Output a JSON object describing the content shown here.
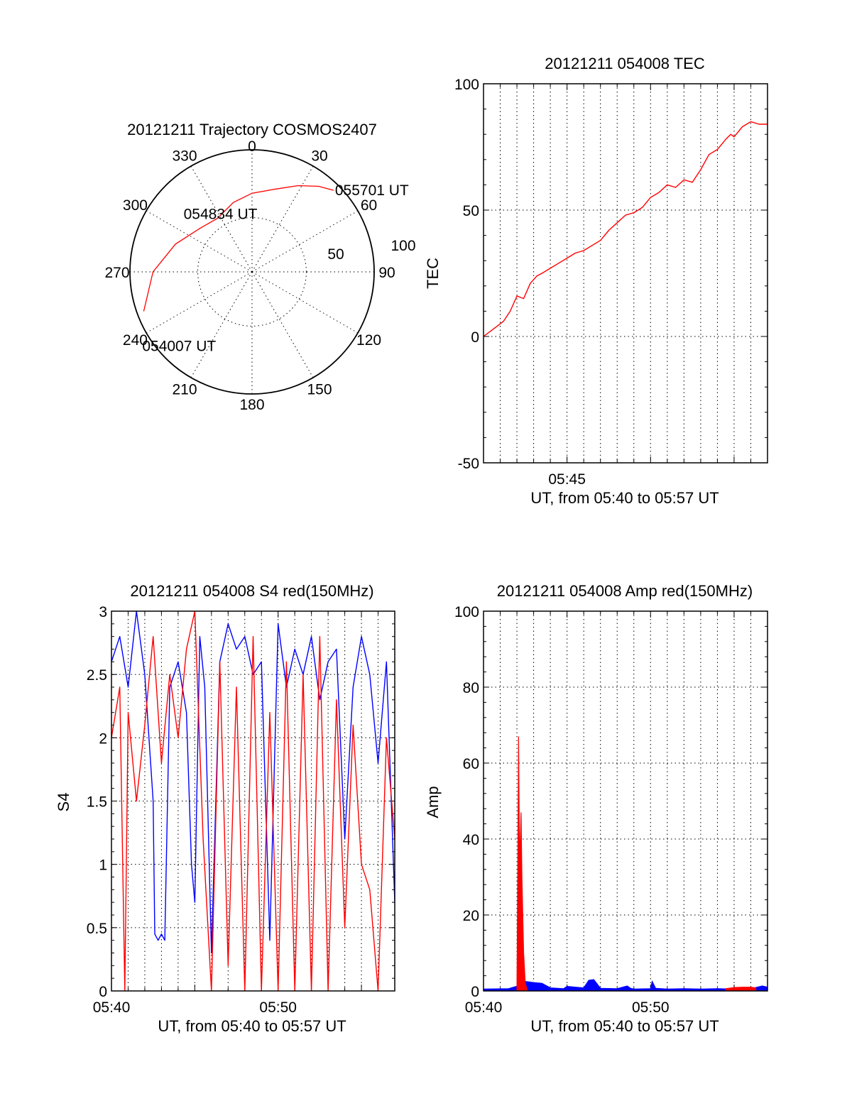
{
  "chart_data": [
    {
      "type": "polar",
      "title": "20121211 Trajectory COSMOS2407",
      "azimuth_labels": [
        "0",
        "30",
        "60",
        "90",
        "120",
        "150",
        "180",
        "210",
        "240",
        "270",
        "300",
        "330"
      ],
      "radial_labels": [
        "50",
        "100"
      ],
      "series": [
        {
          "color": "#ff0000",
          "points": [
            {
              "az": 250,
              "el": 5
            },
            {
              "az": 270,
              "el": 17
            },
            {
              "az": 290,
              "el": 30
            },
            {
              "az": 310,
              "el": 40
            },
            {
              "az": 327,
              "el": 43
            },
            {
              "az": 345,
              "el": 37
            },
            {
              "az": 0,
              "el": 32
            },
            {
              "az": 15,
              "el": 27
            },
            {
              "az": 28,
              "el": 18
            },
            {
              "az": 38,
              "el": 10
            },
            {
              "az": 45,
              "el": 5
            }
          ]
        }
      ],
      "annotations": [
        {
          "text": "055701 UT",
          "az": 45,
          "el": 5
        },
        {
          "text": "054834 UT",
          "az": 335,
          "el": 40
        },
        {
          "text": "054007 UT",
          "az": 250,
          "el": 5
        }
      ]
    },
    {
      "type": "line",
      "title": "20121211 054008 TEC",
      "xlabel": "UT, from 05:40 to 05:57 UT",
      "ylabel": "TEC",
      "xlim": [
        0,
        17
      ],
      "ylim": [
        -50,
        100
      ],
      "yticks": [
        "100",
        "50",
        "0",
        "-50"
      ],
      "xticks": [
        {
          "at": 5,
          "label": "05:45"
        }
      ],
      "grid": true,
      "series": [
        {
          "color": "#ff0000",
          "x": [
            0,
            0.8,
            1.2,
            1.6,
            2.0,
            2.4,
            2.8,
            3.2,
            3.5,
            4.0,
            4.5,
            5.0,
            5.5,
            6.0,
            6.5,
            7.0,
            7.5,
            8.0,
            8.5,
            9.0,
            9.5,
            10.0,
            10.5,
            11.0,
            11.5,
            12.0,
            12.5,
            13.0,
            13.5,
            14.0,
            14.5,
            14.8,
            15.0,
            15.5,
            16.0,
            16.5,
            17.0
          ],
          "y": [
            0,
            4,
            6,
            10,
            16,
            15,
            21,
            24,
            25,
            27,
            29,
            31,
            33,
            34,
            36,
            38,
            42,
            45,
            48,
            49,
            51,
            55,
            57,
            60,
            59,
            62,
            61,
            66,
            72,
            74,
            78,
            80,
            79,
            83,
            85,
            84,
            84
          ]
        }
      ]
    },
    {
      "type": "line",
      "title": "20121211 054008 S4 red(150MHz)",
      "xlabel": "UT, from 05:40 to 05:57 UT",
      "ylabel": "S4",
      "xlim": [
        0,
        17
      ],
      "ylim": [
        0,
        3
      ],
      "yticks": [
        "3",
        "2.5",
        "2",
        "1.5",
        "1",
        "0.5",
        "0"
      ],
      "xticks": [
        {
          "at": 0,
          "label": "05:40"
        },
        {
          "at": 10,
          "label": "05:50"
        }
      ],
      "grid": true,
      "series": [
        {
          "color": "#0000ff",
          "x": [
            0,
            0.5,
            1.0,
            1.5,
            2.0,
            2.5,
            2.6,
            2.8,
            3.0,
            3.2,
            3.5,
            4.0,
            4.5,
            4.8,
            5.0,
            5.3,
            5.6,
            6.0,
            6.5,
            7.0,
            7.5,
            8.0,
            8.5,
            9.0,
            9.5,
            10.0,
            10.5,
            11.0,
            11.5,
            12.0,
            12.5,
            13.0,
            13.5,
            14.0,
            14.5,
            15.0,
            15.5,
            16.0,
            16.5,
            17.0
          ],
          "y": [
            2.6,
            2.8,
            2.4,
            3.0,
            2.5,
            1.5,
            0.45,
            0.4,
            0.45,
            0.4,
            2.4,
            2.6,
            2.2,
            1.0,
            0.7,
            2.8,
            2.4,
            0.3,
            2.6,
            2.9,
            2.7,
            2.8,
            2.5,
            2.6,
            0.4,
            2.9,
            2.4,
            2.7,
            2.5,
            2.8,
            2.3,
            2.6,
            2.7,
            1.2,
            2.4,
            2.8,
            2.5,
            1.8,
            2.6,
            0.7
          ]
        },
        {
          "color": "#ff0000",
          "x": [
            0,
            0.5,
            0.8,
            1.0,
            1.5,
            2.0,
            2.5,
            3.0,
            3.5,
            4.0,
            4.5,
            5.0,
            5.5,
            6.0,
            6.5,
            7.0,
            7.5,
            8.0,
            8.5,
            9.0,
            9.5,
            10.0,
            10.5,
            11.0,
            11.5,
            12.0,
            12.5,
            13.0,
            13.5,
            14.0,
            14.5,
            15.0,
            15.5,
            16.0,
            16.5,
            17.0
          ],
          "y": [
            2.0,
            2.4,
            0.0,
            2.2,
            1.5,
            2.1,
            2.8,
            1.8,
            2.5,
            2.0,
            2.7,
            3.0,
            1.2,
            0.0,
            2.6,
            0.2,
            2.4,
            0.0,
            2.8,
            0.0,
            2.2,
            0.0,
            2.6,
            0.0,
            2.5,
            0.0,
            2.8,
            0.0,
            2.3,
            0.5,
            2.1,
            1.0,
            0.8,
            0.0,
            2.0,
            1.2
          ]
        }
      ]
    },
    {
      "type": "line",
      "title": "20121211 054008 Amp red(150MHz)",
      "xlabel": "UT, from 05:40 to 05:57 UT",
      "ylabel": "Amp",
      "xlim": [
        0,
        17
      ],
      "ylim": [
        0,
        100
      ],
      "yticks": [
        "100",
        "80",
        "60",
        "40",
        "20",
        "0"
      ],
      "xticks": [
        {
          "at": 0,
          "label": "05:40"
        },
        {
          "at": 10,
          "label": "05:50"
        }
      ],
      "grid": true,
      "series": [
        {
          "color": "#0000ff",
          "x": [
            0,
            1.5,
            2.2,
            2.5,
            3.0,
            3.5,
            4.0,
            4.8,
            5.0,
            6.0,
            6.3,
            6.6,
            7.0,
            8.0,
            8.6,
            8.8,
            9.0,
            10.0,
            10.1,
            10.3,
            11.0,
            12.0,
            13.0,
            14.0,
            15.0,
            16.0,
            16.7,
            17.0
          ],
          "y": [
            0.5,
            0.6,
            1.5,
            2.5,
            2.2,
            2.0,
            0.8,
            0.6,
            1.2,
            0.8,
            2.8,
            3.0,
            0.7,
            0.6,
            1.3,
            0.7,
            0.5,
            0.6,
            2.5,
            0.7,
            0.5,
            0.6,
            0.5,
            0.6,
            0.5,
            0.6,
            1.3,
            1.0
          ]
        },
        {
          "color": "#ff0000",
          "x": [
            2.0,
            2.05,
            2.1,
            2.15,
            2.2,
            2.25,
            2.3,
            2.35,
            2.4,
            2.5,
            2.6
          ],
          "y": [
            0.5,
            30,
            67,
            35,
            40,
            47,
            30,
            20,
            10,
            2,
            0.5
          ]
        },
        {
          "color": "#ff0000",
          "x": [
            14.5,
            15.0,
            15.5,
            16.0,
            16.3
          ],
          "y": [
            0.6,
            0.9,
            1.0,
            1.0,
            0.8
          ]
        }
      ]
    }
  ]
}
